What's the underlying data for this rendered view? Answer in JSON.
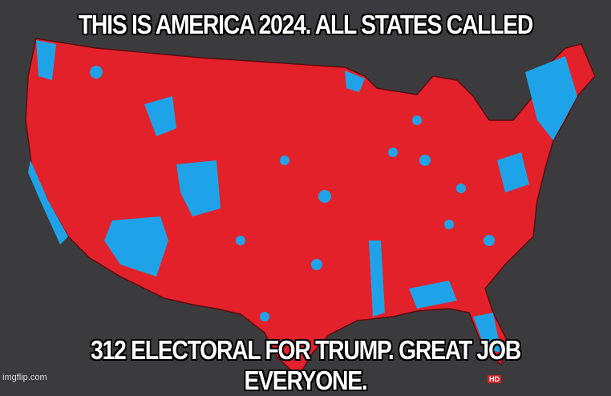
{
  "meme": {
    "top_text": "THIS IS AMERICA 2024. ALL STATES CALLED",
    "bottom_text": "312 ELECTORAL FOR TRUMP. GREAT JOB EVERYONE.",
    "watermark": "imgflip.com",
    "badge": "HD"
  },
  "colors": {
    "background": "#3b3b3d",
    "republican": "#e3212b",
    "democrat": "#1fa3e8",
    "border": "#5a0d10"
  }
}
